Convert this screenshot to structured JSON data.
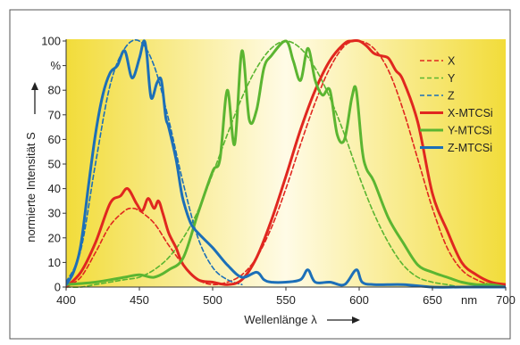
{
  "chart_data": {
    "type": "line",
    "xlabel": "Wellenlänge λ",
    "ylabel": "normierte Intensität S",
    "xlim": [
      400,
      700
    ],
    "ylim": [
      0,
      100
    ],
    "x_ticks": [
      "400",
      "450",
      "500",
      "550",
      "600",
      "650",
      "nm",
      "700"
    ],
    "y_ticks": [
      "100",
      "%",
      "80",
      "70",
      "60",
      "50",
      "40",
      "30",
      "20",
      "10",
      "0"
    ],
    "grid": false,
    "legend_position": "top-right",
    "background": "yellow-white-yellow gradient",
    "series": [
      {
        "name": "X",
        "color": "#e0271f",
        "style": "dashed",
        "x": [
          400,
          410,
          420,
          430,
          440,
          445,
          450,
          460,
          470,
          480,
          490,
          500,
          510,
          520,
          530,
          540,
          550,
          560,
          570,
          580,
          590,
          600,
          610,
          620,
          630,
          640,
          650,
          660,
          670,
          680,
          690,
          700
        ],
        "y": [
          0,
          4,
          14,
          25,
          31,
          32,
          31,
          26,
          17,
          9,
          3,
          1,
          2,
          5,
          12,
          24,
          40,
          58,
          75,
          89,
          98,
          100,
          97,
          88,
          72,
          52,
          32,
          16,
          7,
          3,
          1,
          0
        ]
      },
      {
        "name": "Y",
        "color": "#5bb531",
        "style": "dashed",
        "x": [
          400,
          410,
          420,
          430,
          440,
          450,
          460,
          470,
          480,
          490,
          500,
          510,
          520,
          530,
          540,
          550,
          560,
          570,
          580,
          590,
          600,
          610,
          620,
          630,
          640,
          650,
          660,
          670,
          680,
          690,
          700
        ],
        "y": [
          0,
          0,
          1,
          2,
          3,
          4,
          7,
          12,
          20,
          31,
          46,
          62,
          77,
          89,
          97,
          100,
          97,
          89,
          77,
          62,
          45,
          30,
          18,
          9,
          4,
          2,
          1,
          0,
          0,
          0,
          0
        ]
      },
      {
        "name": "Z",
        "color": "#1c6fb8",
        "style": "dashed",
        "x": [
          400,
          410,
          420,
          430,
          440,
          450,
          460,
          470,
          480,
          490,
          500,
          510,
          520
        ],
        "y": [
          2,
          15,
          50,
          82,
          97,
          100,
          90,
          68,
          42,
          20,
          8,
          3,
          1
        ]
      },
      {
        "name": "X-MTCSi",
        "color": "#e0271f",
        "style": "solid",
        "x": [
          400,
          410,
          420,
          430,
          437,
          442,
          448,
          452,
          456,
          460,
          463,
          466,
          470,
          475,
          480,
          490,
          500,
          510,
          520,
          530,
          540,
          550,
          560,
          570,
          580,
          590,
          595,
          600,
          605,
          610,
          615,
          620,
          625,
          630,
          640,
          650,
          660,
          670,
          680,
          690,
          700
        ],
        "y": [
          0,
          6,
          18,
          34,
          37,
          40,
          34,
          31,
          36,
          32,
          35,
          30,
          22,
          16,
          9,
          3,
          2,
          1,
          3,
          12,
          27,
          45,
          64,
          80,
          92,
          99,
          100,
          100,
          98,
          95,
          94,
          93,
          88,
          84,
          67,
          38,
          23,
          10,
          5,
          2,
          1
        ]
      },
      {
        "name": "Y-MTCSi",
        "color": "#5bb531",
        "style": "solid",
        "x": [
          400,
          420,
          440,
          450,
          460,
          470,
          480,
          490,
          500,
          505,
          510,
          515,
          520,
          525,
          530,
          535,
          540,
          550,
          555,
          560,
          565,
          570,
          575,
          580,
          585,
          590,
          595,
          598,
          602,
          605,
          610,
          620,
          630,
          640,
          650,
          660,
          670,
          680,
          690,
          700
        ],
        "y": [
          1,
          2,
          4,
          5,
          4,
          7,
          12,
          30,
          47,
          52,
          80,
          58,
          96,
          68,
          72,
          89,
          94,
          100,
          92,
          84,
          97,
          84,
          78,
          80,
          62,
          60,
          77,
          80,
          56,
          48,
          43,
          28,
          18,
          9,
          6,
          4,
          2,
          1,
          1,
          0
        ]
      },
      {
        "name": "Z-MTCSi",
        "color": "#1c6fb8",
        "style": "solid",
        "x": [
          400,
          405,
          410,
          415,
          420,
          425,
          430,
          435,
          440,
          445,
          450,
          453,
          455,
          458,
          462,
          465,
          468,
          470,
          475,
          478,
          480,
          485,
          490,
          500,
          510,
          520,
          530,
          535,
          540,
          550,
          560,
          565,
          570,
          580,
          590,
          598,
          602,
          610,
          630,
          650,
          670,
          700
        ],
        "y": [
          1,
          6,
          17,
          40,
          62,
          78,
          87,
          90,
          96,
          85,
          93,
          100,
          95,
          77,
          83,
          84,
          69,
          65,
          52,
          41,
          35,
          26,
          22,
          16,
          9,
          4,
          6,
          3,
          2,
          2,
          3,
          7,
          2,
          2,
          1,
          7,
          2,
          1,
          1,
          0,
          0,
          0
        ]
      }
    ]
  }
}
